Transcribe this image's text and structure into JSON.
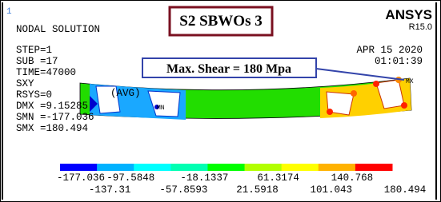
{
  "header": {
    "index": "1",
    "title": "NODAL SOLUTION",
    "product": "ANSYS",
    "release": "R15.0",
    "date": "APR 15 2020",
    "time": "01:01:39"
  },
  "info": [
    "STEP=1",
    "SUB =17",
    "TIME=47000",
    "SXY",
    "(AVG)",
    "RSYS=0",
    "DMX =9.15285",
    "SMN =-177.036",
    "SMX =180.494"
  ],
  "caption": "S2 SBWOs 3",
  "callout": "Max. Shear = 180 Mpa",
  "markers": [
    "MN",
    "MX"
  ],
  "legend": {
    "labels": [
      "-177.036",
      "-137.31",
      "-97.5848",
      "-57.8593",
      "-18.1337",
      "21.5918",
      "61.3174",
      "101.043",
      "140.768",
      "180.494"
    ]
  }
}
